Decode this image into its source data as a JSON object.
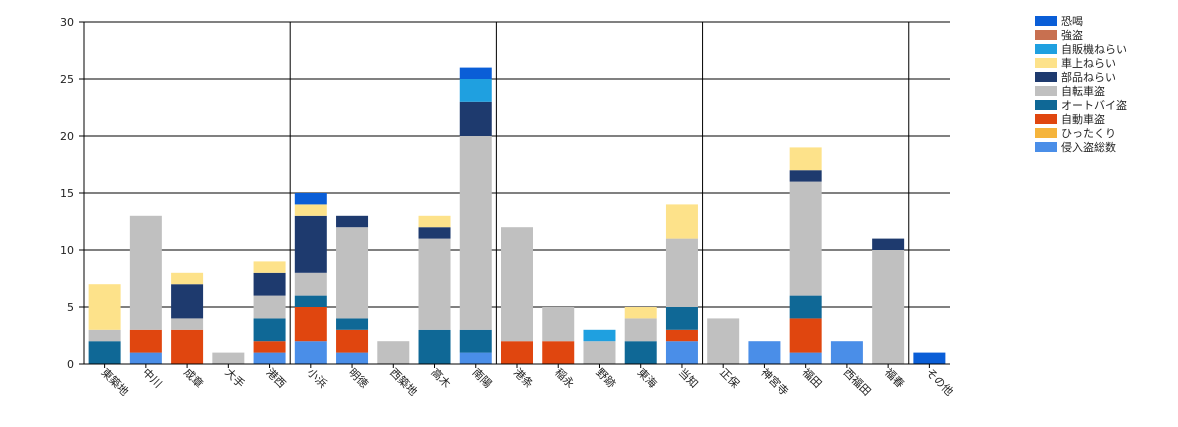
{
  "chart_data": {
    "type": "bar",
    "stacked": true,
    "title": "",
    "xlabel": "",
    "ylabel": "",
    "ylim": [
      0,
      30
    ],
    "yticks": [
      "0",
      "5",
      "10",
      "15",
      "20",
      "25",
      "30"
    ],
    "legend_position": "top-right",
    "grid": "major gridlines",
    "categories": [
      "東築地",
      "中川",
      "成章",
      "大手",
      "港西",
      "小浜",
      "明徳",
      "西築地",
      "高木",
      "南陽",
      "港条",
      "稲永",
      "野跡",
      "東海",
      "当知",
      "正保",
      "神宮寺",
      "福田",
      "西福田",
      "福春",
      "その他"
    ],
    "series": [
      {
        "name": "侵入盗総数",
        "color": "#4a8ee8",
        "values": [
          0,
          1,
          0,
          0,
          1,
          2,
          1,
          0,
          0,
          1,
          0,
          0,
          0,
          0,
          2,
          0,
          2,
          1,
          2,
          0,
          0
        ]
      },
      {
        "name": "ひったくり",
        "color": "#f5b43c",
        "values": [
          0,
          0,
          0,
          0,
          0,
          0,
          0,
          0,
          0,
          0,
          0,
          0,
          0,
          0,
          0,
          0,
          0,
          0,
          0,
          0,
          0
        ]
      },
      {
        "name": "自動車盗",
        "color": "#e0460f",
        "values": [
          0,
          2,
          3,
          0,
          1,
          3,
          2,
          0,
          0,
          0,
          2,
          2,
          0,
          0,
          1,
          0,
          0,
          3,
          0,
          0,
          0
        ]
      },
      {
        "name": "オートバイ盗",
        "color": "#0f6896",
        "values": [
          2,
          0,
          0,
          0,
          2,
          1,
          1,
          0,
          3,
          2,
          0,
          0,
          0,
          2,
          2,
          0,
          0,
          2,
          0,
          0,
          0
        ]
      },
      {
        "name": "自転車盗",
        "color": "#c0c0c0",
        "values": [
          1,
          10,
          1,
          1,
          2,
          2,
          8,
          2,
          8,
          17,
          10,
          3,
          2,
          2,
          6,
          4,
          0,
          10,
          0,
          10,
          0
        ]
      },
      {
        "name": "部品ねらい",
        "color": "#1e3a6e",
        "values": [
          0,
          0,
          3,
          0,
          2,
          5,
          1,
          0,
          1,
          3,
          0,
          0,
          0,
          0,
          0,
          0,
          0,
          1,
          0,
          1,
          0
        ]
      },
      {
        "name": "車上ねらい",
        "color": "#fde28a",
        "values": [
          4,
          0,
          1,
          0,
          1,
          1,
          0,
          0,
          1,
          0,
          0,
          0,
          0,
          1,
          3,
          0,
          0,
          2,
          0,
          0,
          0
        ]
      },
      {
        "name": "自販機ねらい",
        "color": "#1fa0e0",
        "values": [
          0,
          0,
          0,
          0,
          0,
          0,
          0,
          0,
          0,
          2,
          0,
          0,
          1,
          0,
          0,
          0,
          0,
          0,
          0,
          0,
          0
        ]
      },
      {
        "name": "強盗",
        "color": "#c87050",
        "values": [
          0,
          0,
          0,
          0,
          0,
          0,
          0,
          0,
          0,
          0,
          0,
          0,
          0,
          0,
          0,
          0,
          0,
          0,
          0,
          0,
          0
        ]
      },
      {
        "name": "恐喝",
        "color": "#0a5ed7",
        "values": [
          0,
          0,
          0,
          0,
          0,
          1,
          0,
          0,
          0,
          1,
          0,
          0,
          0,
          0,
          0,
          0,
          0,
          0,
          0,
          0,
          1
        ]
      }
    ],
    "legend_order": [
      "恐喝",
      "強盗",
      "自販機ねらい",
      "車上ねらい",
      "部品ねらい",
      "自転車盗",
      "オートバイ盗",
      "自動車盗",
      "ひったくり",
      "侵入盗総数"
    ]
  }
}
